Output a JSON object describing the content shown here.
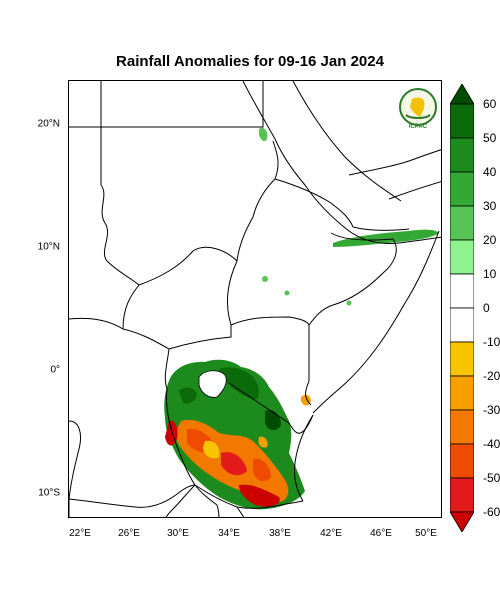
{
  "title": "Rainfall Anomalies for 09-16 Jan 2024",
  "logo": {
    "top_text": "IGAD",
    "bottom_text": "ICPAC"
  },
  "y_axis": [
    "20°N",
    "10°N",
    "0°",
    "10°S"
  ],
  "x_axis": [
    "22°E",
    "26°E",
    "30°E",
    "34°E",
    "38°E",
    "42°E",
    "46°E",
    "50°E"
  ],
  "colorbar": {
    "labels": [
      "60",
      "50",
      "40",
      "30",
      "20",
      "10",
      "0",
      "-10",
      "-20",
      "-30",
      "-40",
      "-50",
      "-60"
    ],
    "colors": [
      "#004d00",
      "#0b6b0b",
      "#1d8a1d",
      "#34a834",
      "#55c455",
      "#8ef28e",
      "#ffffff",
      "#ffffff",
      "#f7c400",
      "#f5a000",
      "#f27800",
      "#ee4a00",
      "#e31a1c",
      "#cc0000"
    ]
  }
}
